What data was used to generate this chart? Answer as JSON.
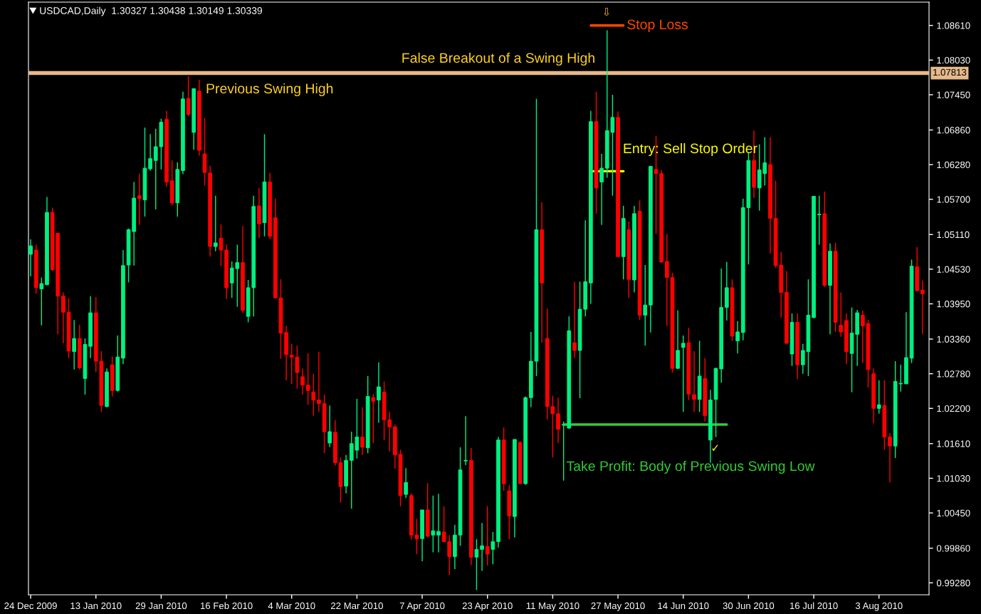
{
  "chart_data": {
    "type": "candlestick",
    "title": "USDCAD,Daily  1.30327 1.30438 1.30149 1.30339",
    "categories": [
      "24 Dec 2009",
      null,
      null,
      null,
      null,
      null,
      null,
      null,
      null,
      null,
      null,
      null,
      "13 Jan 2010",
      null,
      null,
      null,
      null,
      null,
      null,
      null,
      null,
      null,
      null,
      null,
      "29 Jan 2010",
      null,
      null,
      null,
      null,
      null,
      null,
      null,
      null,
      null,
      null,
      null,
      "16 Feb 2010",
      null,
      null,
      null,
      null,
      null,
      null,
      null,
      null,
      null,
      null,
      null,
      "4 Mar 2010",
      null,
      null,
      null,
      null,
      null,
      null,
      null,
      null,
      null,
      null,
      null,
      "22 Mar 2010",
      null,
      null,
      null,
      null,
      null,
      null,
      null,
      null,
      null,
      null,
      null,
      "7 Apr 2010",
      null,
      null,
      null,
      null,
      null,
      null,
      null,
      null,
      null,
      null,
      null,
      "23 Apr 2010",
      null,
      null,
      null,
      null,
      null,
      null,
      null,
      null,
      null,
      null,
      null,
      "11 May 2010",
      null,
      null,
      null,
      null,
      null,
      null,
      null,
      null,
      null,
      null,
      null,
      "27 May 2010",
      null,
      null,
      null,
      null,
      null,
      null,
      null,
      null,
      null,
      null,
      null,
      "14 Jun 2010",
      null,
      null,
      null,
      null,
      null,
      null,
      null,
      null,
      null,
      null,
      null,
      "30 Jun 2010",
      null,
      null,
      null,
      null,
      null,
      null,
      null,
      null,
      null,
      null,
      null,
      "16 Jul 2010",
      null,
      null,
      null,
      null,
      null,
      null,
      null,
      null,
      null,
      null,
      null,
      "3 Aug 2010",
      null,
      null,
      null,
      null,
      null,
      null,
      null,
      null
    ],
    "ohlc": [
      [
        1.0478,
        1.0503,
        1.0441,
        1.0492
      ],
      [
        1.0485,
        1.0494,
        1.0412,
        1.0422
      ],
      [
        1.042,
        1.0439,
        1.0359,
        1.0429
      ],
      [
        1.0427,
        1.0574,
        1.0426,
        1.0548
      ],
      [
        1.0548,
        1.0556,
        1.045,
        1.0452
      ],
      [
        1.0513,
        1.0514,
        1.0344,
        1.0408
      ],
      [
        1.0408,
        1.0414,
        1.0329,
        1.0381
      ],
      [
        1.0381,
        1.0404,
        1.0304,
        1.0316
      ],
      [
        1.0315,
        1.0368,
        1.0285,
        1.0337
      ],
      [
        1.0337,
        1.036,
        1.0285,
        1.0288
      ],
      [
        1.027,
        1.0337,
        1.0243,
        1.0327
      ],
      [
        1.0324,
        1.0408,
        1.0304,
        1.038
      ],
      [
        1.038,
        1.0406,
        1.0281,
        1.0299
      ],
      [
        1.0299,
        1.0316,
        1.0214,
        1.0225
      ],
      [
        1.0223,
        1.0287,
        1.0222,
        1.0281
      ],
      [
        1.0293,
        1.0307,
        1.024,
        1.025
      ],
      [
        1.025,
        1.0342,
        1.0248,
        1.0306
      ],
      [
        1.0304,
        1.0485,
        1.0294,
        1.0459
      ],
      [
        1.046,
        1.0521,
        1.0431,
        1.0519
      ],
      [
        1.0516,
        1.0599,
        1.0459,
        1.0572
      ],
      [
        1.0576,
        1.0613,
        1.0527,
        1.0571
      ],
      [
        1.0569,
        1.069,
        1.0541,
        1.0622
      ],
      [
        1.0621,
        1.0679,
        1.0618,
        1.0638
      ],
      [
        1.0635,
        1.0688,
        1.0553,
        1.0658
      ],
      [
        1.0658,
        1.0705,
        1.062,
        1.0699
      ],
      [
        1.0704,
        1.0718,
        1.0591,
        1.0599
      ],
      [
        1.0601,
        1.0635,
        1.056,
        1.0564
      ],
      [
        1.0564,
        1.0632,
        1.0541,
        1.062
      ],
      [
        1.0618,
        1.075,
        1.0612,
        1.0738
      ],
      [
        1.0739,
        1.0776,
        1.0709,
        1.0712
      ],
      [
        1.0682,
        1.0756,
        1.0653,
        1.0755
      ],
      [
        1.0751,
        1.077,
        1.0643,
        1.0652
      ],
      [
        1.0646,
        1.0706,
        1.0593,
        1.0615
      ],
      [
        1.0614,
        1.0626,
        1.0474,
        1.0491
      ],
      [
        1.0491,
        1.0576,
        1.0483,
        1.0497
      ],
      [
        1.0505,
        1.0528,
        1.0458,
        1.0485
      ],
      [
        1.0485,
        1.0494,
        1.0403,
        1.0422
      ],
      [
        1.043,
        1.0466,
        1.0405,
        1.0455
      ],
      [
        1.0454,
        1.0494,
        1.039,
        1.0464
      ],
      [
        1.0464,
        1.0525,
        1.038,
        1.0384
      ],
      [
        1.0374,
        1.0435,
        1.0364,
        1.0422
      ],
      [
        1.0422,
        1.0576,
        1.0374,
        1.0558
      ],
      [
        1.0559,
        1.0589,
        1.0505,
        1.0529
      ],
      [
        1.0531,
        1.0679,
        1.0508,
        1.0599
      ],
      [
        1.0599,
        1.0614,
        1.0503,
        1.0508
      ],
      [
        1.0539,
        1.0571,
        1.0405,
        1.0405
      ],
      [
        1.0405,
        1.0436,
        1.0303,
        1.0346
      ],
      [
        1.0347,
        1.0358,
        1.0267,
        1.031
      ],
      [
        1.0309,
        1.0328,
        1.0261,
        1.0306
      ],
      [
        1.0306,
        1.0325,
        1.0253,
        1.028
      ],
      [
        1.0273,
        1.0287,
        1.0243,
        1.0259
      ],
      [
        1.0259,
        1.0312,
        1.0226,
        1.025
      ],
      [
        1.0247,
        1.0278,
        1.0208,
        1.0234
      ],
      [
        1.0234,
        1.0315,
        1.0214,
        1.0228
      ],
      [
        1.0228,
        1.0243,
        1.0145,
        1.0181
      ],
      [
        1.0162,
        1.0225,
        1.0155,
        1.0181
      ],
      [
        1.018,
        1.02,
        1.0124,
        1.0129
      ],
      [
        1.0129,
        1.0138,
        1.0062,
        1.0089
      ],
      [
        1.009,
        1.0142,
        1.0078,
        1.0133
      ],
      [
        1.0133,
        1.0181,
        1.0052,
        1.0161
      ],
      [
        1.015,
        1.0236,
        1.0136,
        1.0172
      ],
      [
        1.0172,
        1.0222,
        1.0142,
        1.0155
      ],
      [
        1.0154,
        1.0274,
        1.0145,
        1.024
      ],
      [
        1.0238,
        1.0244,
        1.0162,
        1.0232
      ],
      [
        1.0234,
        1.0297,
        1.0196,
        1.0256
      ],
      [
        1.0247,
        1.0265,
        1.0167,
        1.0201
      ],
      [
        1.0201,
        1.0214,
        1.0148,
        1.0189
      ],
      [
        1.0189,
        1.0193,
        1.0119,
        1.0142
      ],
      [
        1.0143,
        1.0151,
        1.0056,
        1.0074
      ],
      [
        1.0076,
        1.012,
        1.007,
        1.0096
      ],
      [
        1.0074,
        1.0078,
        1.0,
        1.0008
      ],
      [
        1.0008,
        1.0035,
        0.9976,
        1.0002
      ],
      [
        1.0002,
        1.005,
        0.9964,
        1.005
      ],
      [
        1.005,
        1.0095,
        1.0004,
        1.0006
      ],
      [
        1.0008,
        1.0074,
        0.9979,
        1.0015
      ],
      [
        1.0008,
        1.0077,
        0.9979,
        1.0014
      ],
      [
        1.0013,
        1.0056,
        0.9996,
        0.9997
      ],
      [
        0.9997,
        1.0008,
        0.9941,
        0.9972
      ],
      [
        0.9972,
        1.0025,
        0.9951,
        1.0008
      ],
      [
        1.0008,
        1.0155,
        0.999,
        1.0117
      ],
      [
        1.0132,
        1.0207,
        1.0125,
        1.0133
      ],
      [
        1.0133,
        1.0154,
        0.9958,
        0.9971
      ],
      [
        0.9971,
        1.0001,
        0.9916,
        0.9984
      ],
      [
        0.9984,
        1.0028,
        0.9948,
        0.999
      ],
      [
        0.9989,
        1.0056,
        0.9957,
        0.9976
      ],
      [
        0.9984,
        1.0013,
        0.9959,
        0.9997
      ],
      [
        0.9997,
        1.0172,
        0.9987,
        1.0167
      ],
      [
        1.0167,
        1.0188,
        1.0082,
        1.0094
      ],
      [
        1.0082,
        1.0092,
        1.0001,
        1.004
      ],
      [
        1.0039,
        1.0168,
        1.0004,
        1.0168
      ],
      [
        1.0163,
        1.0165,
        1.0094,
        1.0094
      ],
      [
        1.0094,
        1.024,
        1.0092,
        1.0238
      ],
      [
        1.0238,
        1.0348,
        1.0222,
        1.0299
      ],
      [
        1.0299,
        1.0738,
        1.0274,
        1.0519
      ],
      [
        1.0519,
        1.0565,
        1.033,
        1.043
      ],
      [
        1.0337,
        1.0387,
        1.0201,
        1.0223
      ],
      [
        1.0223,
        1.0241,
        1.0138,
        1.0211
      ],
      [
        1.0211,
        1.0238,
        1.0162,
        1.0185
      ],
      [
        1.0192,
        1.0198,
        1.0099,
        1.0193
      ],
      [
        1.0187,
        1.0374,
        1.0186,
        1.035
      ],
      [
        1.033,
        1.0432,
        1.0304,
        1.0317
      ],
      [
        1.0317,
        1.0432,
        1.0237,
        1.0386
      ],
      [
        1.0386,
        1.0535,
        1.0374,
        1.0432
      ],
      [
        1.043,
        1.0718,
        1.0395,
        1.07
      ],
      [
        1.07,
        1.075,
        1.0546,
        1.0589
      ],
      [
        1.0599,
        1.0646,
        1.0527,
        1.0622
      ],
      [
        1.0622,
        1.0853,
        1.0606,
        1.0685
      ],
      [
        1.0682,
        1.0745,
        1.0576,
        1.0707
      ],
      [
        1.0707,
        1.0717,
        1.0474,
        1.0474
      ],
      [
        1.0474,
        1.0559,
        1.0436,
        1.0538
      ],
      [
        1.0519,
        1.0533,
        1.0405,
        1.0436
      ],
      [
        1.0435,
        1.0559,
        1.0414,
        1.0546
      ],
      [
        1.055,
        1.0568,
        1.0368,
        1.0376
      ],
      [
        1.0376,
        1.046,
        1.0325,
        1.0393
      ],
      [
        1.0393,
        1.0626,
        1.0347,
        1.0625
      ],
      [
        1.062,
        1.0676,
        1.0512,
        1.0613
      ],
      [
        1.0613,
        1.0619,
        1.0464,
        1.0465
      ],
      [
        1.0466,
        1.0512,
        1.0358,
        1.0439
      ],
      [
        1.0439,
        1.0447,
        1.028,
        1.0287
      ],
      [
        1.0287,
        1.0384,
        1.0286,
        1.0317
      ],
      [
        1.0322,
        1.0342,
        1.0214,
        1.0329
      ],
      [
        1.033,
        1.0355,
        1.0234,
        1.0244
      ],
      [
        1.0243,
        1.0316,
        1.0214,
        1.0235
      ],
      [
        1.0235,
        1.0333,
        1.0214,
        1.0274
      ],
      [
        1.027,
        1.0304,
        1.0198,
        1.0208
      ],
      [
        1.0167,
        1.0251,
        1.0129,
        1.0234
      ],
      [
        1.0235,
        1.0288,
        1.0172,
        1.0287
      ],
      [
        1.0286,
        1.0454,
        1.0263,
        1.0389
      ],
      [
        1.0389,
        1.0465,
        1.0367,
        1.0422
      ],
      [
        1.0422,
        1.0436,
        1.0333,
        1.0341
      ],
      [
        1.0333,
        1.0366,
        1.0312,
        1.0348
      ],
      [
        1.0347,
        1.0571,
        1.0334,
        1.0556
      ],
      [
        1.0556,
        1.0649,
        1.0461,
        1.0635
      ],
      [
        1.0635,
        1.0685,
        1.0572,
        1.059
      ],
      [
        1.0589,
        1.0662,
        1.0551,
        1.0619
      ],
      [
        1.0613,
        1.0674,
        1.0593,
        1.0631
      ],
      [
        1.0628,
        1.0674,
        1.0479,
        1.0538
      ],
      [
        1.0538,
        1.0601,
        1.0455,
        1.0459
      ],
      [
        1.046,
        1.0482,
        1.0372,
        1.0414
      ],
      [
        1.0414,
        1.045,
        1.0328,
        1.0329
      ],
      [
        1.0311,
        1.0379,
        1.0291,
        1.0364
      ],
      [
        1.0364,
        1.0379,
        1.0269,
        1.0293
      ],
      [
        1.0293,
        1.0328,
        1.0278,
        1.0317
      ],
      [
        1.0315,
        1.0436,
        1.0274,
        1.0376
      ],
      [
        1.0372,
        1.0575,
        1.0371,
        1.0575
      ],
      [
        1.0544,
        1.0576,
        1.0494,
        1.0545
      ],
      [
        1.0546,
        1.0583,
        1.0423,
        1.0426
      ],
      [
        1.0426,
        1.0496,
        1.0344,
        1.0483
      ],
      [
        1.0483,
        1.0497,
        1.0348,
        1.0364
      ],
      [
        1.0359,
        1.0414,
        1.034,
        1.0348
      ],
      [
        1.0367,
        1.0379,
        1.0294,
        1.0315
      ],
      [
        1.0312,
        1.0389,
        1.0247,
        1.0346
      ],
      [
        1.0344,
        1.0385,
        1.0291,
        1.038
      ],
      [
        1.0376,
        1.0384,
        1.0296,
        1.0358
      ],
      [
        1.0362,
        1.0368,
        1.0255,
        1.0285
      ],
      [
        1.0278,
        1.0287,
        1.0195,
        1.022
      ],
      [
        1.022,
        1.0267,
        1.0211,
        1.0226
      ],
      [
        1.0225,
        1.0267,
        1.0151,
        1.0172
      ],
      [
        1.0172,
        1.0179,
        1.0096,
        1.0157
      ],
      [
        1.0157,
        1.0299,
        1.0137,
        1.0265
      ],
      [
        1.0261,
        1.0293,
        1.0248,
        1.0262
      ],
      [
        1.0261,
        1.0381,
        1.0261,
        1.0305
      ],
      [
        1.0304,
        1.0469,
        1.0296,
        1.0458
      ],
      [
        1.0457,
        1.049,
        1.0417,
        1.0417
      ],
      [
        1.0418,
        1.0434,
        1.0344,
        1.0412
      ]
    ],
    "colors": [
      "#00f080",
      "#ff0000",
      "#00f080",
      "#00f080",
      "#ff0000",
      "#ff0000",
      "#ff0000",
      "#ff0000",
      "#00f080",
      "#ff0000",
      "#00f080",
      "#00f080",
      "#ff0000",
      "#ff0000",
      "#00f080",
      "#ff0000",
      "#00f080",
      "#00f080",
      "#00f080",
      "#00f080",
      "#ff0000",
      "#00f080",
      "#00f080",
      "#00f080",
      "#00f080",
      "#ff0000",
      "#ff0000",
      "#00f080",
      "#00f080",
      "#ff0000",
      "#00f080",
      "#ff0000",
      "#ff0000",
      "#ff0000",
      "#00f080",
      "#ff0000",
      "#ff0000",
      "#00f080",
      "#00f080",
      "#ff0000",
      "#00f080",
      "#00f080",
      "#ff0000",
      "#00f080",
      "#ff0000",
      "#ff0000",
      "#ff0000",
      "#ff0000",
      "#ff0000",
      "#ff0000",
      "#ff0000",
      "#ff0000",
      "#ff0000",
      "#ff0000",
      "#ff0000",
      "#00f080",
      "#ff0000",
      "#ff0000",
      "#00f080",
      "#00f080",
      "#00f080",
      "#ff0000",
      "#00f080",
      "#ff0000",
      "#00f080",
      "#ff0000",
      "#ff0000",
      "#ff0000",
      "#ff0000",
      "#00f080",
      "#ff0000",
      "#ff0000",
      "#00f080",
      "#ff0000",
      "#00f080",
      "#00f080",
      "#ff0000",
      "#ff0000",
      "#00f080",
      "#00f080",
      "#00f080",
      "#ff0000",
      "#00f080",
      "#00f080",
      "#ff0000",
      "#00f080",
      "#00f080",
      "#ff0000",
      "#ff0000",
      "#00f080",
      "#ff0000",
      "#00f080",
      "#00f080",
      "#00f080",
      "#ff0000",
      "#ff0000",
      "#ff0000",
      "#ff0000",
      "#00f080",
      "#00f080",
      "#ff0000",
      "#00f080",
      "#00f080",
      "#00f080",
      "#ff0000",
      "#00f080",
      "#00f080",
      "#00f080",
      "#ff0000",
      "#00f080",
      "#ff0000",
      "#00f080",
      "#ff0000",
      "#00f080",
      "#00f080",
      "#ff0000",
      "#ff0000",
      "#ff0000",
      "#ff0000",
      "#00f080",
      "#00f080",
      "#ff0000",
      "#ff0000",
      "#00f080",
      "#ff0000",
      "#00f080",
      "#00f080",
      "#00f080",
      "#00f080",
      "#ff0000",
      "#00f080",
      "#00f080",
      "#00f080",
      "#ff0000",
      "#00f080",
      "#00f080",
      "#ff0000",
      "#ff0000",
      "#ff0000",
      "#ff0000",
      "#00f080",
      "#ff0000",
      "#00f080",
      "#00f080",
      "#00f080",
      "#00f080",
      "#ff0000",
      "#00f080",
      "#ff0000",
      "#ff0000",
      "#ff0000",
      "#00f080",
      "#00f080",
      "#ff0000",
      "#ff0000",
      "#ff0000",
      "#00f080",
      "#ff0000",
      "#ff0000",
      "#00f080",
      "#00f080",
      "#00f080",
      "#00f080",
      "#ff0000",
      "#ff0000"
    ],
    "series": [
      {
        "type": "line",
        "color": "#ff4500",
        "values": [
          null,
          null,
          null,
          null,
          null,
          null,
          null,
          null,
          null,
          null,
          null,
          null,
          null,
          null,
          null,
          null,
          null,
          null,
          null,
          null,
          null,
          null,
          null,
          null,
          null,
          null,
          null,
          null,
          null,
          null,
          null,
          null,
          null,
          null,
          null,
          null,
          null,
          null,
          null,
          null,
          null,
          null,
          null,
          null,
          null,
          null,
          null,
          null,
          null,
          null,
          null,
          null,
          null,
          null,
          null,
          null,
          null,
          null,
          null,
          null,
          null,
          null,
          null,
          null,
          null,
          null,
          null,
          null,
          null,
          null,
          null,
          null,
          null,
          null,
          null,
          null,
          null,
          null,
          null,
          null,
          null,
          null,
          null,
          null,
          null,
          null,
          null,
          null,
          null,
          null,
          null,
          null,
          null,
          null,
          null,
          null,
          null,
          null,
          null,
          null,
          null,
          null,
          null,
          1.0861,
          1.0861,
          1.0861,
          1.0861,
          1.0861,
          1.0861,
          1.0861,
          null,
          null,
          null,
          null,
          null,
          null,
          null,
          null,
          null,
          null,
          null,
          null,
          null,
          null,
          null,
          null,
          null,
          null,
          null,
          null,
          null,
          null,
          null,
          null,
          null,
          null,
          null,
          null,
          null,
          null,
          null,
          null,
          null,
          null,
          null,
          null,
          null,
          null,
          null,
          null,
          null,
          null,
          null,
          null,
          null,
          null,
          null,
          null,
          null,
          null,
          null,
          null,
          null,
          null,
          null
        ]
      },
      {
        "type": "line",
        "color": "#ffff00",
        "values": [
          null,
          null,
          null,
          null,
          null,
          null,
          null,
          null,
          null,
          null,
          null,
          null,
          null,
          null,
          null,
          null,
          null,
          null,
          null,
          null,
          null,
          null,
          null,
          null,
          null,
          null,
          null,
          null,
          null,
          null,
          null,
          null,
          null,
          null,
          null,
          null,
          null,
          null,
          null,
          null,
          null,
          null,
          null,
          null,
          null,
          null,
          null,
          null,
          null,
          null,
          null,
          null,
          null,
          null,
          null,
          null,
          null,
          null,
          null,
          null,
          null,
          null,
          null,
          null,
          null,
          null,
          null,
          null,
          null,
          null,
          null,
          null,
          null,
          null,
          null,
          null,
          null,
          null,
          null,
          null,
          null,
          null,
          null,
          null,
          null,
          null,
          null,
          null,
          null,
          null,
          null,
          null,
          null,
          null,
          null,
          null,
          null,
          null,
          null,
          null,
          null,
          null,
          null,
          1.0617,
          1.0617,
          1.0617,
          1.0617,
          1.0617,
          1.0617,
          1.0617,
          null,
          null,
          null,
          null,
          null,
          null,
          null,
          null,
          null,
          null,
          null,
          null,
          null,
          null,
          null,
          null,
          null,
          null,
          null,
          null,
          null,
          null,
          null,
          null,
          null,
          null,
          null,
          null,
          null,
          null,
          null,
          null,
          null,
          null,
          null,
          null,
          null,
          null,
          null,
          null,
          null,
          null,
          null,
          null,
          null,
          null,
          null,
          null,
          null,
          null,
          null,
          null,
          null,
          null,
          null
        ]
      },
      {
        "type": "line",
        "color": "#32cd32",
        "values": [
          null,
          null,
          null,
          null,
          null,
          null,
          null,
          null,
          null,
          null,
          null,
          null,
          null,
          null,
          null,
          null,
          null,
          null,
          null,
          null,
          null,
          null,
          null,
          null,
          null,
          null,
          null,
          null,
          null,
          null,
          null,
          null,
          null,
          null,
          null,
          null,
          null,
          null,
          null,
          null,
          null,
          null,
          null,
          null,
          null,
          null,
          null,
          null,
          null,
          null,
          null,
          null,
          null,
          null,
          null,
          null,
          null,
          null,
          null,
          null,
          null,
          null,
          null,
          null,
          null,
          null,
          null,
          null,
          null,
          null,
          null,
          null,
          null,
          null,
          null,
          null,
          null,
          null,
          null,
          null,
          null,
          null,
          null,
          null,
          null,
          null,
          null,
          null,
          null,
          null,
          null,
          null,
          null,
          null,
          null,
          null,
          null,
          null,
          1.0193,
          1.0193,
          1.0193,
          1.0193,
          1.0193,
          1.0193,
          1.0193,
          1.0193,
          1.0193,
          1.0193,
          1.0193,
          1.0193,
          1.0193,
          1.0193,
          1.0193,
          1.0193,
          1.0193,
          1.0193,
          1.0193,
          1.0193,
          1.0193,
          1.0193,
          1.0193,
          1.0193,
          1.0193,
          1.0193,
          1.0193,
          1.0193,
          1.0193,
          1.0193,
          1.0193,
          null,
          null,
          null,
          null,
          null,
          null,
          null,
          null,
          null,
          null,
          null,
          null,
          null,
          null,
          null,
          null,
          null,
          null,
          null,
          null,
          null,
          null,
          null,
          null,
          null,
          null,
          null,
          null,
          null,
          null,
          null,
          null,
          null,
          null,
          null,
          null
        ]
      }
    ],
    "ref_lines": [
      {
        "axis": "y",
        "value": 1.07813,
        "label": "1.07813",
        "color": "#e6b98a"
      }
    ],
    "ylim": [
      0.9908,
      1.09
    ],
    "yticks": [
      {
        "value": 1.0861,
        "label": "1.08610"
      },
      {
        "value": 1.0803,
        "label": "1.08030"
      },
      {
        "value": 1.0745,
        "label": "1.07450"
      },
      {
        "value": 1.0686,
        "label": "1.06860"
      },
      {
        "value": 1.0628,
        "label": "1.06280"
      },
      {
        "value": 1.057,
        "label": "1.05700"
      },
      {
        "value": 1.0511,
        "label": "1.05110"
      },
      {
        "value": 1.0453,
        "label": "1.04530"
      },
      {
        "value": 1.0395,
        "label": "1.03950"
      },
      {
        "value": 1.0336,
        "label": "1.03360"
      },
      {
        "value": 1.0278,
        "label": "1.02780"
      },
      {
        "value": 1.022,
        "label": "1.02200"
      },
      {
        "value": 1.0161,
        "label": "1.01610"
      },
      {
        "value": 1.0103,
        "label": "1.01030"
      },
      {
        "value": 1.0045,
        "label": "1.00450"
      },
      {
        "value": 0.9986,
        "label": "0.99860"
      },
      {
        "value": 0.9928,
        "label": "0.99280"
      }
    ],
    "annotations": [
      "Previous Swing High",
      "False Breakout of a Swing High",
      "Stop Loss",
      "Entry: Sell Stop Order",
      "Take Profit: Body of Previous Swing Low",
      "⇩",
      "✓"
    ]
  }
}
